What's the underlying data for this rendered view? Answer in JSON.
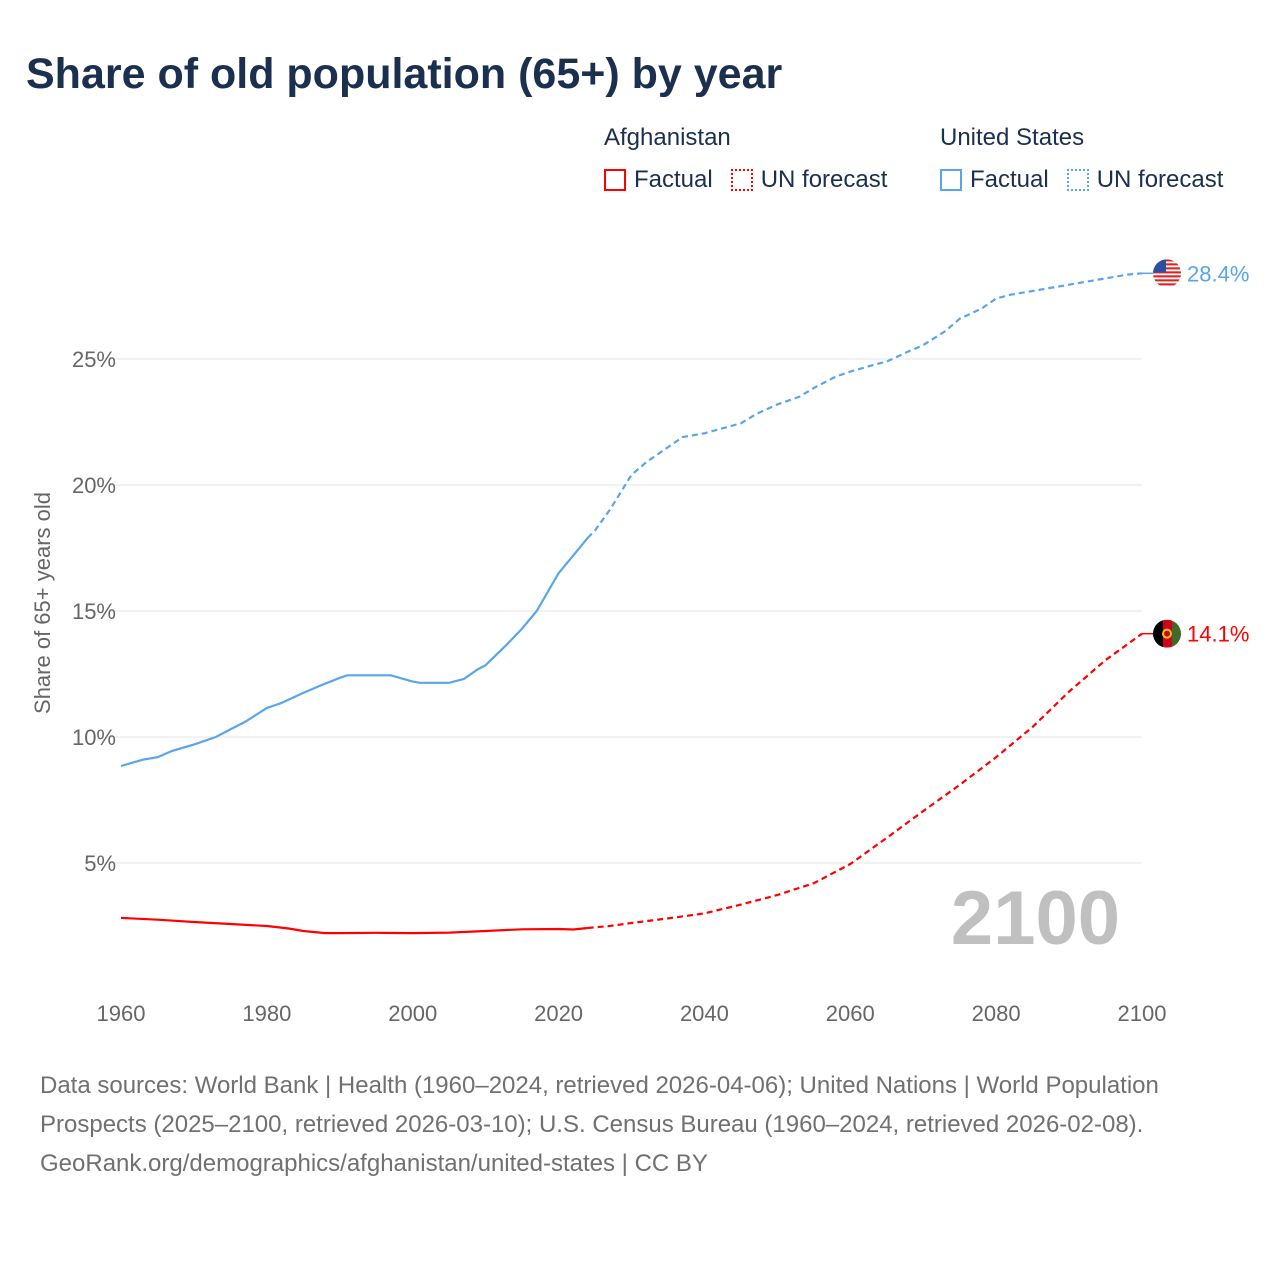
{
  "title": "Share of old population (65+) by year",
  "legend": {
    "groups": [
      {
        "name": "Afghanistan",
        "color": "#ff0000",
        "factual": "Factual",
        "forecast": "UN forecast"
      },
      {
        "name": "United States",
        "color": "#5aa5ea",
        "factual": "Factual",
        "forecast": "UN forecast"
      }
    ]
  },
  "chart_data": {
    "type": "line",
    "title": "Share of old population (65+) by year",
    "xlabel": "",
    "ylabel": "Share of 65+ years old",
    "xlim": [
      1960,
      2100
    ],
    "ylim": [
      0,
      30
    ],
    "x_ticks": [
      "1960",
      "1980",
      "2000",
      "2020",
      "2040",
      "2060",
      "2080",
      "2100"
    ],
    "y_ticks": [
      {
        "v": 5,
        "label": "5%"
      },
      {
        "v": 10,
        "label": "10%"
      },
      {
        "v": 15,
        "label": "15%"
      },
      {
        "v": 20,
        "label": "20%"
      },
      {
        "v": 25,
        "label": "25%"
      }
    ],
    "year_label": "2100",
    "grid": true,
    "series": [
      {
        "name": "United States",
        "color": "#5aa5ea",
        "end_label": "28.4%",
        "flag": "us-flag",
        "factual": [
          [
            1960,
            8.85
          ],
          [
            1963,
            9.1
          ],
          [
            1965,
            9.2
          ],
          [
            1967,
            9.45
          ],
          [
            1970,
            9.7
          ],
          [
            1973,
            10.0
          ],
          [
            1975,
            10.3
          ],
          [
            1977,
            10.6
          ],
          [
            1980,
            11.15
          ],
          [
            1982,
            11.35
          ],
          [
            1985,
            11.75
          ],
          [
            1987,
            12.0
          ],
          [
            1990,
            12.35
          ],
          [
            1991,
            12.45
          ],
          [
            1997,
            12.45
          ],
          [
            2000,
            12.2
          ],
          [
            2001,
            12.15
          ],
          [
            2005,
            12.15
          ],
          [
            2007,
            12.3
          ],
          [
            2009,
            12.7
          ],
          [
            2010,
            12.85
          ],
          [
            2013,
            13.7
          ],
          [
            2015,
            14.3
          ],
          [
            2017,
            15.0
          ],
          [
            2020,
            16.5
          ],
          [
            2022,
            17.2
          ],
          [
            2024,
            17.9
          ]
        ],
        "forecast": [
          [
            2024,
            17.9
          ],
          [
            2025,
            18.2
          ],
          [
            2027,
            19.0
          ],
          [
            2030,
            20.4
          ],
          [
            2032,
            20.9
          ],
          [
            2035,
            21.5
          ],
          [
            2037,
            21.9
          ],
          [
            2040,
            22.05
          ],
          [
            2045,
            22.45
          ],
          [
            2047,
            22.8
          ],
          [
            2050,
            23.2
          ],
          [
            2053,
            23.5
          ],
          [
            2055,
            23.85
          ],
          [
            2058,
            24.3
          ],
          [
            2060,
            24.5
          ],
          [
            2063,
            24.75
          ],
          [
            2065,
            24.9
          ],
          [
            2068,
            25.3
          ],
          [
            2070,
            25.55
          ],
          [
            2073,
            26.1
          ],
          [
            2075,
            26.6
          ],
          [
            2078,
            27.0
          ],
          [
            2080,
            27.4
          ],
          [
            2082,
            27.55
          ],
          [
            2085,
            27.7
          ],
          [
            2088,
            27.85
          ],
          [
            2090,
            27.95
          ],
          [
            2093,
            28.1
          ],
          [
            2095,
            28.2
          ],
          [
            2098,
            28.35
          ],
          [
            2100,
            28.4
          ]
        ]
      },
      {
        "name": "Afghanistan",
        "color": "#ff0000",
        "end_label": "14.1%",
        "flag": "afghanistan-flag",
        "factual": [
          [
            1960,
            2.82
          ],
          [
            1965,
            2.75
          ],
          [
            1970,
            2.66
          ],
          [
            1975,
            2.58
          ],
          [
            1980,
            2.5
          ],
          [
            1983,
            2.4
          ],
          [
            1985,
            2.3
          ],
          [
            1988,
            2.22
          ],
          [
            1990,
            2.22
          ],
          [
            1995,
            2.23
          ],
          [
            2000,
            2.22
          ],
          [
            2005,
            2.24
          ],
          [
            2010,
            2.3
          ],
          [
            2015,
            2.37
          ],
          [
            2020,
            2.38
          ],
          [
            2022,
            2.36
          ],
          [
            2024,
            2.42
          ]
        ],
        "forecast": [
          [
            2024,
            2.42
          ],
          [
            2027,
            2.5
          ],
          [
            2030,
            2.62
          ],
          [
            2035,
            2.8
          ],
          [
            2040,
            3.0
          ],
          [
            2045,
            3.35
          ],
          [
            2050,
            3.73
          ],
          [
            2055,
            4.2
          ],
          [
            2060,
            4.96
          ],
          [
            2065,
            6.0
          ],
          [
            2070,
            7.06
          ],
          [
            2075,
            8.1
          ],
          [
            2080,
            9.2
          ],
          [
            2085,
            10.4
          ],
          [
            2090,
            11.8
          ],
          [
            2095,
            13.05
          ],
          [
            2100,
            14.1
          ]
        ]
      }
    ]
  },
  "footer": {
    "sources": "Data sources: World Bank | Health (1960–2024, retrieved 2026-04-06); United Nations | World Population Prospects (2025–2100, retrieved 2026-03-10); U.S. Census Bureau (1960–2024, retrieved 2026-02-08).",
    "credit": "GeoRank.org/demographics/afghanistan/united-states | CC BY"
  }
}
